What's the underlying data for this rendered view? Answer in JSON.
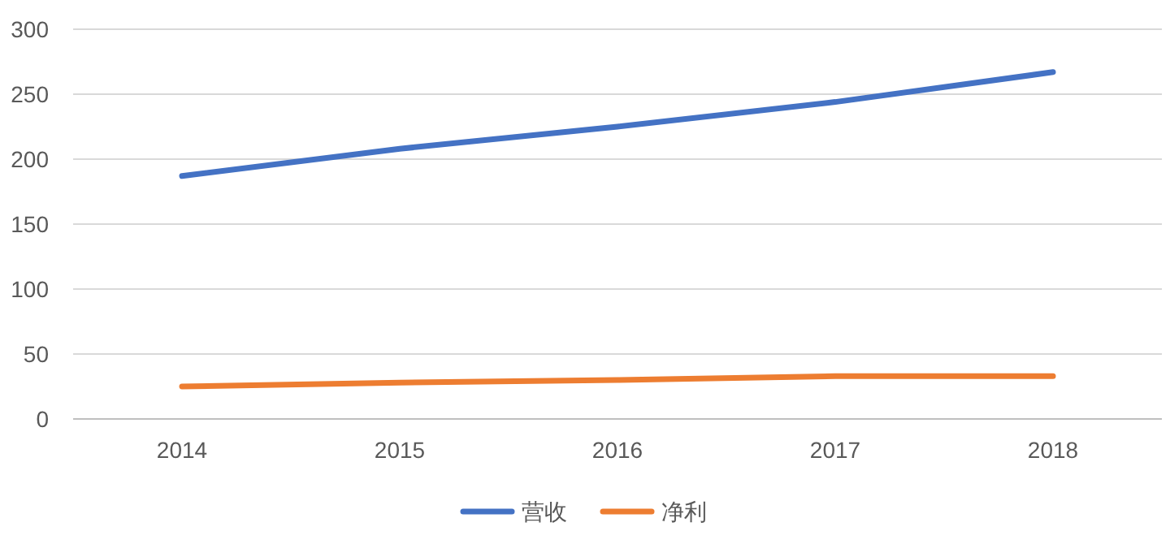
{
  "chart_data": {
    "type": "line",
    "categories": [
      "2014",
      "2015",
      "2016",
      "2017",
      "2018"
    ],
    "series": [
      {
        "name": "营收",
        "color": "#4472c4",
        "values": [
          187,
          208,
          225,
          244,
          267
        ]
      },
      {
        "name": "净利",
        "color": "#ed7d31",
        "values": [
          25,
          28,
          30,
          33,
          33
        ]
      }
    ],
    "ylim": [
      0,
      300
    ],
    "yticks": [
      0,
      50,
      100,
      150,
      200,
      250,
      300
    ],
    "grid": "y",
    "legend": "bottom",
    "marker": "none",
    "line_style": "solid"
  }
}
